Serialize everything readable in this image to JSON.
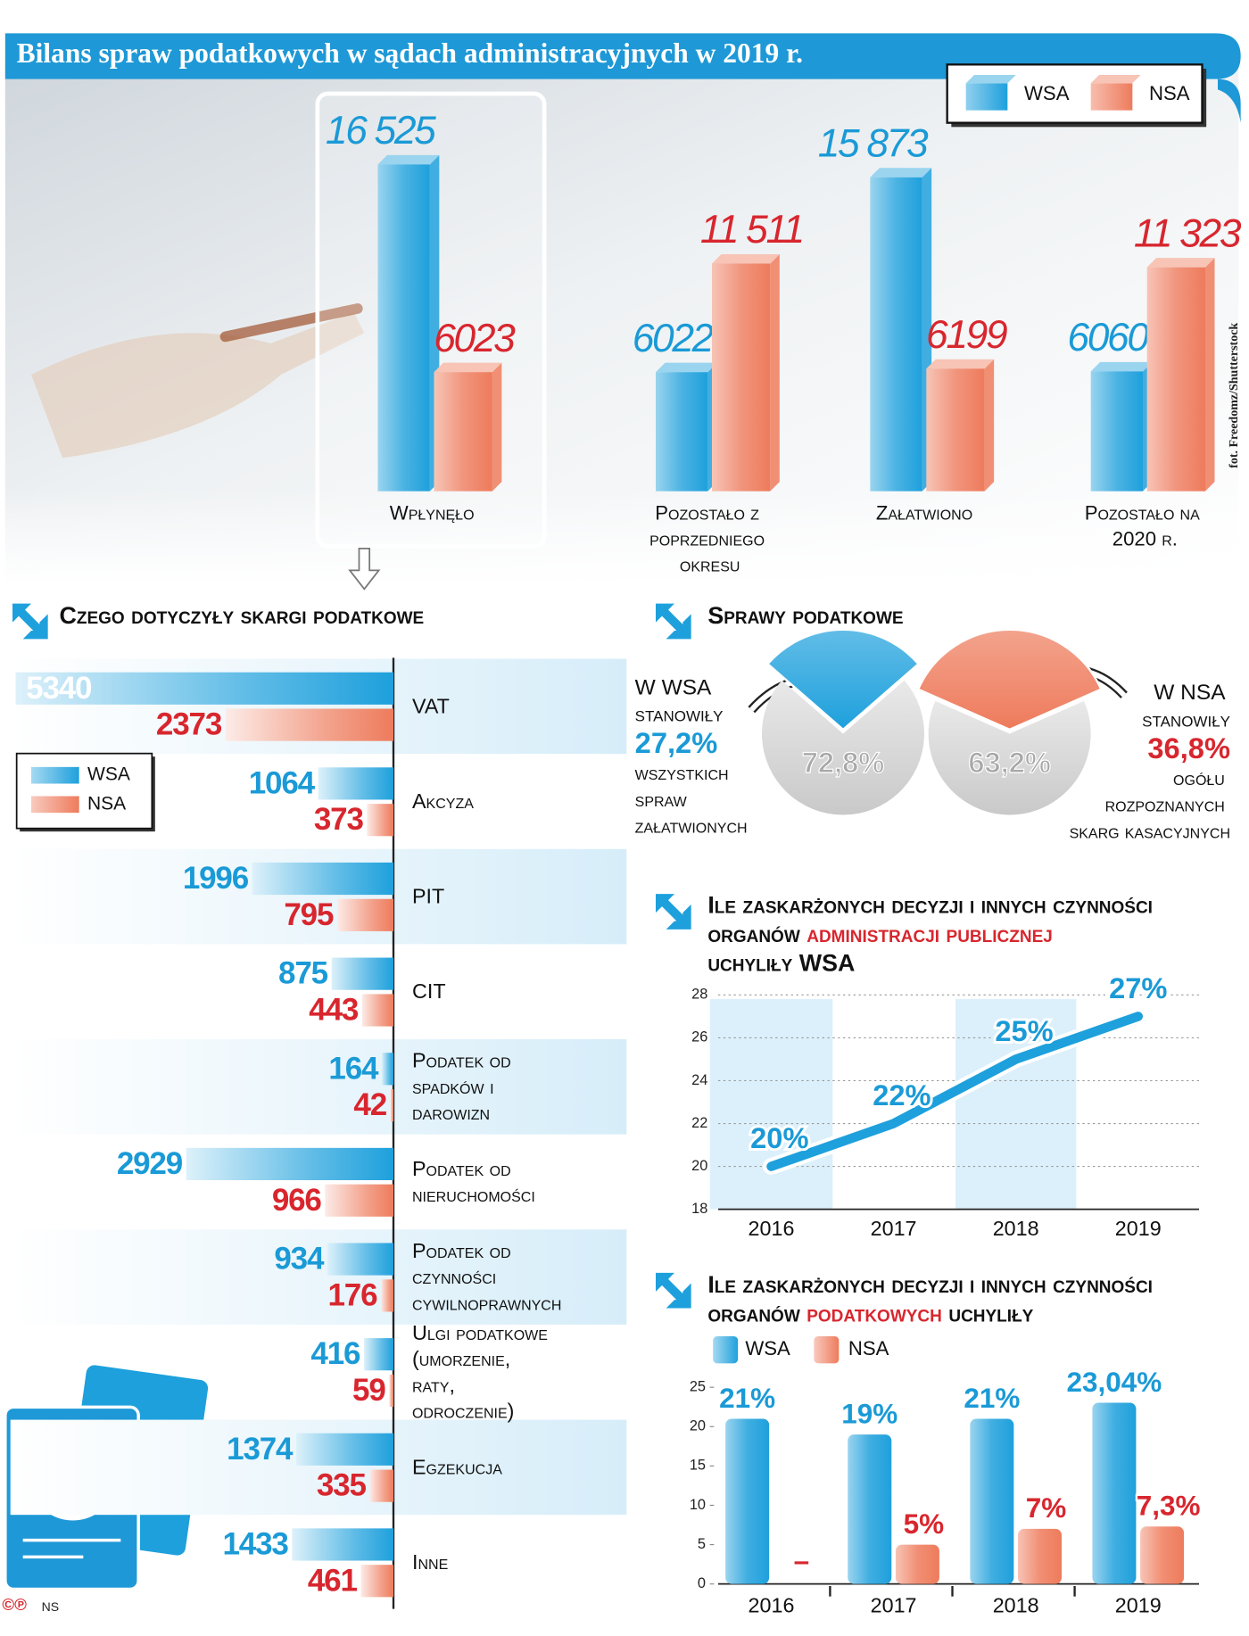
{
  "chart_data": [
    {
      "type": "bar3d",
      "title": "Bilans spraw podatkowych w sądach administracyjnych w 2019 r.",
      "credit": "fot. Freedomz/Shutterstock",
      "categories": [
        "Wpłynęło",
        "Pozostało z poprzedniego okresu",
        "Załatwiono",
        "Pozostało na 2020 r."
      ],
      "series": [
        {
          "name": "WSA",
          "color": "#1ea0dc",
          "values": [
            16525,
            6022,
            15873,
            6060
          ],
          "value_labels": [
            "16 525",
            "6022",
            "15 873",
            "6060"
          ]
        },
        {
          "name": "NSA",
          "color": "#ee7b5c",
          "values": [
            6023,
            11511,
            6199,
            11323
          ],
          "value_labels": [
            "6023",
            "11 511",
            "6199",
            "11 323"
          ]
        }
      ]
    },
    {
      "type": "hbar",
      "title": "Czego dotyczyły skargi podatkowe",
      "categories": [
        "VAT",
        "Akcyza",
        "PIT",
        "CIT",
        "Podatek od spadków i darowizn",
        "Podatek od nieruchomości",
        "Podatek od czynności cywilnoprawnych",
        "Ulgi podatkowe (umorzenie, raty, odroczenie)",
        "Egzekucja",
        "Inne"
      ],
      "series": [
        {
          "name": "WSA",
          "color": "#1ea0dc",
          "values": [
            5340,
            1064,
            1996,
            875,
            164,
            2929,
            934,
            416,
            1374,
            1433
          ]
        },
        {
          "name": "NSA",
          "color": "#ee7b5c",
          "values": [
            2373,
            373,
            795,
            443,
            42,
            966,
            176,
            59,
            335,
            461
          ]
        }
      ]
    },
    {
      "type": "pie",
      "title": "Sprawy podatkowe",
      "pies": [
        {
          "lead": "W WSA stanowiły",
          "values": [
            27.2,
            72.8
          ],
          "value_labels": [
            "27,2%",
            "72,8%"
          ],
          "colors": [
            "#1ea0dc",
            "#c9c9c9"
          ],
          "tail": "wszystkich spraw załatwionych"
        },
        {
          "lead": "W NSA stanowiły",
          "values": [
            36.8,
            63.2
          ],
          "value_labels": [
            "36,8%",
            "63,2%"
          ],
          "colors": [
            "#ee7b5c",
            "#c9c9c9"
          ],
          "tail": "ogółu rozpoznanych skarg kasacyjnych"
        }
      ]
    },
    {
      "type": "line",
      "title": [
        "Ile zaskarżonych decyzji i innych czynności",
        "organów",
        "administracji publicznej",
        "uchyliły WSA"
      ],
      "categories": [
        "2016",
        "2017",
        "2018",
        "2019"
      ],
      "values": [
        20,
        22,
        25,
        27
      ],
      "value_labels": [
        "20%",
        "22%",
        "25%",
        "27%"
      ],
      "color": "#1ea0dc",
      "ylim": [
        18,
        28
      ],
      "yticks": [
        18,
        20,
        22,
        24,
        26,
        28
      ],
      "grid": true
    },
    {
      "type": "bar",
      "title": [
        "Ile zaskarżonych decyzji i innych czynności",
        "organów",
        "podatkowych",
        "uchyliły"
      ],
      "categories": [
        "2016",
        "2017",
        "2018",
        "2019"
      ],
      "series": [
        {
          "name": "WSA",
          "color": "#1ea0dc",
          "values": [
            21,
            19,
            21,
            23.04
          ],
          "value_labels": [
            "21%",
            "19%",
            "21%",
            "23,04%"
          ]
        },
        {
          "name": "NSA",
          "color": "#ee7b5c",
          "values": [
            null,
            5,
            7,
            7.3
          ],
          "value_labels": [
            "–",
            "5%",
            "7%",
            "7,3%"
          ]
        }
      ],
      "ylim": [
        0,
        25
      ],
      "yticks": [
        0,
        5,
        10,
        15,
        20,
        25
      ],
      "grid": false
    }
  ],
  "footer": {
    "copyright": "©℗",
    "author": "NS"
  }
}
